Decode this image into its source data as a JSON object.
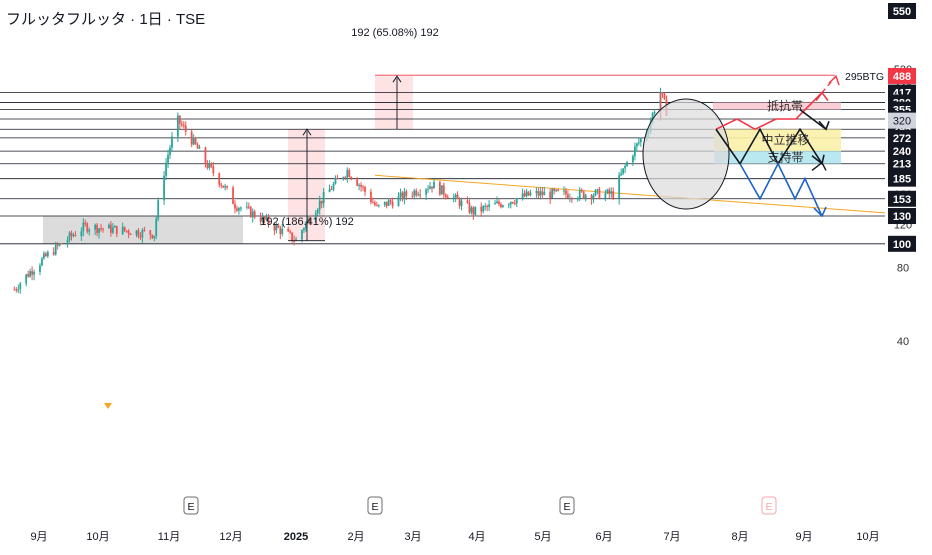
{
  "header": {
    "title": "フルッタフルッタ · 1日 · TSE"
  },
  "colors": {
    "up": "#26a69a",
    "down": "#ef5350",
    "level_line": "#131722",
    "trendline": "#f5a623",
    "resist_zone": "#f8c9cf",
    "mid_zone": "#fbefa9",
    "support_zone": "#b2e5f0",
    "scenario_red": "#f23645",
    "scenario_black": "#131722",
    "scenario_blue": "#1e63c8",
    "measure_fill": "#fde3e3",
    "range_fill": "#d6d6d6",
    "price_tag": "#f23645"
  },
  "chart_data": {
    "type": "candlestick",
    "symbol": "フルッタフルッタ",
    "interval": "1日",
    "exchange": "TSE",
    "x_labels": [
      "9月",
      "10月",
      "11月",
      "12月",
      "2025",
      "2月",
      "3月",
      "4月",
      "5月",
      "6月",
      "7月",
      "8月",
      "9月",
      "10月"
    ],
    "y_ticks": [
      40,
      80,
      120,
      160,
      200,
      240,
      280,
      320,
      360,
      400,
      440,
      480,
      520
    ],
    "ylim": [
      30,
      555
    ],
    "grid": false,
    "levels": [
      550,
      488,
      417,
      380,
      355,
      325,
      295,
      272,
      240,
      213,
      185,
      153,
      130,
      100
    ],
    "highlighted_labels": [
      "320"
    ],
    "current_price": {
      "value": 488,
      "label": "488"
    },
    "zones": [
      {
        "label": "抵抗帯",
        "from": 355,
        "to": 380
      },
      {
        "label": "中立推移",
        "from": 240,
        "to": 295
      },
      {
        "label": "支持帯",
        "from": 213,
        "to": 240
      }
    ],
    "measurements": [
      {
        "label": "192 (186.41%) 192",
        "from": 103,
        "to": 295
      },
      {
        "label": "192 (65.08%) 192",
        "from": 295,
        "to": 487
      }
    ],
    "target_label": "295BTG",
    "target_value": 487,
    "earnings_markers": [
      "E",
      "E",
      "E",
      "E"
    ],
    "key_points": [
      {
        "date": "2024-08-20",
        "price": 65
      },
      {
        "date": "2024-09-25",
        "price": 118
      },
      {
        "date": "2024-10-30",
        "price": 110
      },
      {
        "date": "2024-11-11",
        "price": 320
      },
      {
        "date": "2024-11-25",
        "price": 215
      },
      {
        "date": "2024-12-10",
        "price": 145
      },
      {
        "date": "2025-01-10",
        "price": 103
      },
      {
        "date": "2025-02-05",
        "price": 200
      },
      {
        "date": "2025-02-20",
        "price": 140
      },
      {
        "date": "2025-03-20",
        "price": 175
      },
      {
        "date": "2025-04-10",
        "price": 135
      },
      {
        "date": "2025-05-10",
        "price": 160
      },
      {
        "date": "2025-06-20",
        "price": 160
      },
      {
        "date": "2025-07-08",
        "price": 300
      },
      {
        "date": "2025-07-14",
        "price": 418
      },
      {
        "date": "2025-07-18",
        "price": 330
      }
    ]
  }
}
